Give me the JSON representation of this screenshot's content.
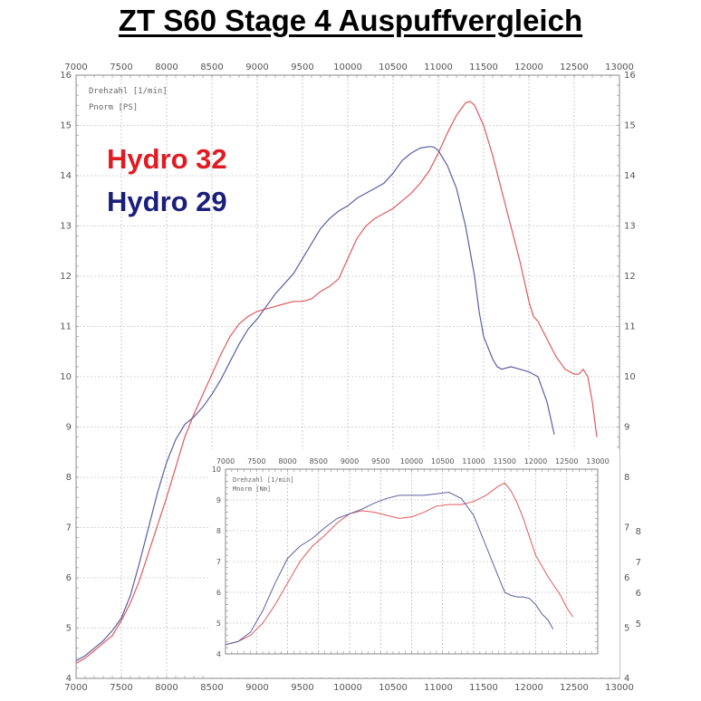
{
  "title": "ZT S60 Stage 4 Auspuffvergleich",
  "colors": {
    "hydro32": "#e11b22",
    "hydro29": "#1b1f7a",
    "hydro32_line": "#e0595f",
    "hydro29_line": "#5b5f9e"
  },
  "chart_data": [
    {
      "type": "line",
      "name": "power",
      "axis_labels": [
        "Drehzahl [1/min]",
        "Pnorm [PS]"
      ],
      "xlim": [
        7000,
        13000
      ],
      "ylim": [
        4,
        16
      ],
      "x_ticks": [
        "7000",
        "7500",
        "8000",
        "8500",
        "9000",
        "9500",
        "10000",
        "10500",
        "11000",
        "11500",
        "12000",
        "12500",
        "13000"
      ],
      "y_ticks": [
        "4",
        "5",
        "6",
        "7",
        "8",
        "9",
        "10",
        "11",
        "12",
        "13",
        "14",
        "15",
        "16"
      ],
      "legend_placement": "top-left",
      "grid": true,
      "series": [
        {
          "name": "Hydro 32",
          "x": [
            7000,
            7100,
            7200,
            7300,
            7400,
            7500,
            7600,
            7700,
            7800,
            7900,
            8000,
            8100,
            8200,
            8300,
            8400,
            8500,
            8600,
            8700,
            8800,
            8900,
            9000,
            9100,
            9200,
            9300,
            9400,
            9500,
            9600,
            9700,
            9800,
            9900,
            10000,
            10100,
            10200,
            10300,
            10400,
            10500,
            10600,
            10700,
            10800,
            10900,
            11000,
            11100,
            11200,
            11300,
            11350,
            11400,
            11450,
            11500,
            11600,
            11700,
            11800,
            11900,
            12000,
            12050,
            12100,
            12200,
            12300,
            12400,
            12500,
            12550,
            12600,
            12650,
            12700,
            12750
          ],
          "y": [
            4.3,
            4.4,
            4.55,
            4.7,
            4.85,
            5.15,
            5.5,
            5.95,
            6.5,
            7.05,
            7.6,
            8.2,
            8.8,
            9.25,
            9.65,
            10.05,
            10.45,
            10.8,
            11.05,
            11.2,
            11.3,
            11.35,
            11.4,
            11.45,
            11.5,
            11.5,
            11.55,
            11.7,
            11.8,
            11.95,
            12.35,
            12.75,
            13.0,
            13.15,
            13.25,
            13.35,
            13.5,
            13.65,
            13.85,
            14.1,
            14.45,
            14.85,
            15.2,
            15.45,
            15.48,
            15.4,
            15.2,
            15.0,
            14.4,
            13.7,
            13.0,
            12.3,
            11.5,
            11.2,
            11.1,
            10.75,
            10.4,
            10.15,
            10.05,
            10.05,
            10.15,
            10.0,
            9.5,
            8.8
          ]
        },
        {
          "name": "Hydro 29",
          "x": [
            7000,
            7100,
            7200,
            7300,
            7400,
            7500,
            7600,
            7700,
            7800,
            7900,
            8000,
            8100,
            8200,
            8300,
            8400,
            8500,
            8600,
            8700,
            8800,
            8900,
            9000,
            9100,
            9200,
            9300,
            9400,
            9500,
            9600,
            9700,
            9800,
            9900,
            10000,
            10100,
            10200,
            10300,
            10400,
            10500,
            10600,
            10700,
            10800,
            10900,
            10950,
            11000,
            11100,
            11200,
            11300,
            11400,
            11450,
            11500,
            11600,
            11650,
            11700,
            11800,
            11900,
            12000,
            12100,
            12200,
            12280
          ],
          "y": [
            4.35,
            4.45,
            4.6,
            4.75,
            4.95,
            5.2,
            5.65,
            6.3,
            7.0,
            7.7,
            8.3,
            8.75,
            9.05,
            9.2,
            9.4,
            9.65,
            9.95,
            10.3,
            10.65,
            10.95,
            11.15,
            11.4,
            11.65,
            11.85,
            12.05,
            12.35,
            12.65,
            12.95,
            13.15,
            13.3,
            13.4,
            13.55,
            13.65,
            13.75,
            13.85,
            14.05,
            14.3,
            14.45,
            14.55,
            14.58,
            14.57,
            14.5,
            14.2,
            13.75,
            13.0,
            12.0,
            11.3,
            10.8,
            10.35,
            10.2,
            10.15,
            10.2,
            10.15,
            10.1,
            10.0,
            9.5,
            8.85
          ]
        }
      ]
    },
    {
      "type": "line",
      "name": "torque",
      "axis_labels": [
        "Drehzahl [1/min]",
        "Mnorm [Nm]"
      ],
      "xlim": [
        7000,
        13000
      ],
      "ylim": [
        4,
        10
      ],
      "x_ticks": [
        "7000",
        "7500",
        "8000",
        "8500",
        "9000",
        "9500",
        "10000",
        "10500",
        "11000",
        "11500",
        "12000",
        "12500",
        "13000"
      ],
      "y_ticks": [
        "4",
        "5",
        "6",
        "7",
        "8",
        "9",
        "10"
      ],
      "right_ticks": [
        "5",
        "6",
        "7",
        "8"
      ],
      "grid": true,
      "series": [
        {
          "name": "Hydro 32",
          "x": [
            7000,
            7200,
            7400,
            7600,
            7800,
            8000,
            8200,
            8400,
            8600,
            8800,
            9000,
            9200,
            9400,
            9600,
            9800,
            10000,
            10200,
            10400,
            10600,
            10800,
            11000,
            11200,
            11400,
            11500,
            11600,
            11700,
            11800,
            11900,
            12000,
            12200,
            12400,
            12500,
            12600
          ],
          "y": [
            4.3,
            4.4,
            4.6,
            5.0,
            5.6,
            6.3,
            7.0,
            7.5,
            7.85,
            8.25,
            8.55,
            8.65,
            8.6,
            8.5,
            8.4,
            8.45,
            8.6,
            8.8,
            8.85,
            8.85,
            8.95,
            9.15,
            9.45,
            9.55,
            9.3,
            8.9,
            8.4,
            7.8,
            7.2,
            6.5,
            5.9,
            5.5,
            5.2
          ]
        },
        {
          "name": "Hydro 29",
          "x": [
            7000,
            7200,
            7400,
            7600,
            7800,
            8000,
            8200,
            8400,
            8600,
            8800,
            9000,
            9200,
            9400,
            9600,
            9800,
            10000,
            10200,
            10400,
            10600,
            10800,
            11000,
            11200,
            11400,
            11500,
            11600,
            11700,
            11800,
            11900,
            12000,
            12100,
            12200,
            12280
          ],
          "y": [
            4.3,
            4.4,
            4.7,
            5.4,
            6.3,
            7.1,
            7.5,
            7.75,
            8.1,
            8.4,
            8.55,
            8.7,
            8.9,
            9.05,
            9.15,
            9.15,
            9.15,
            9.2,
            9.25,
            9.05,
            8.5,
            7.5,
            6.5,
            6.0,
            5.9,
            5.85,
            5.85,
            5.8,
            5.6,
            5.3,
            5.1,
            4.8
          ]
        }
      ]
    }
  ]
}
